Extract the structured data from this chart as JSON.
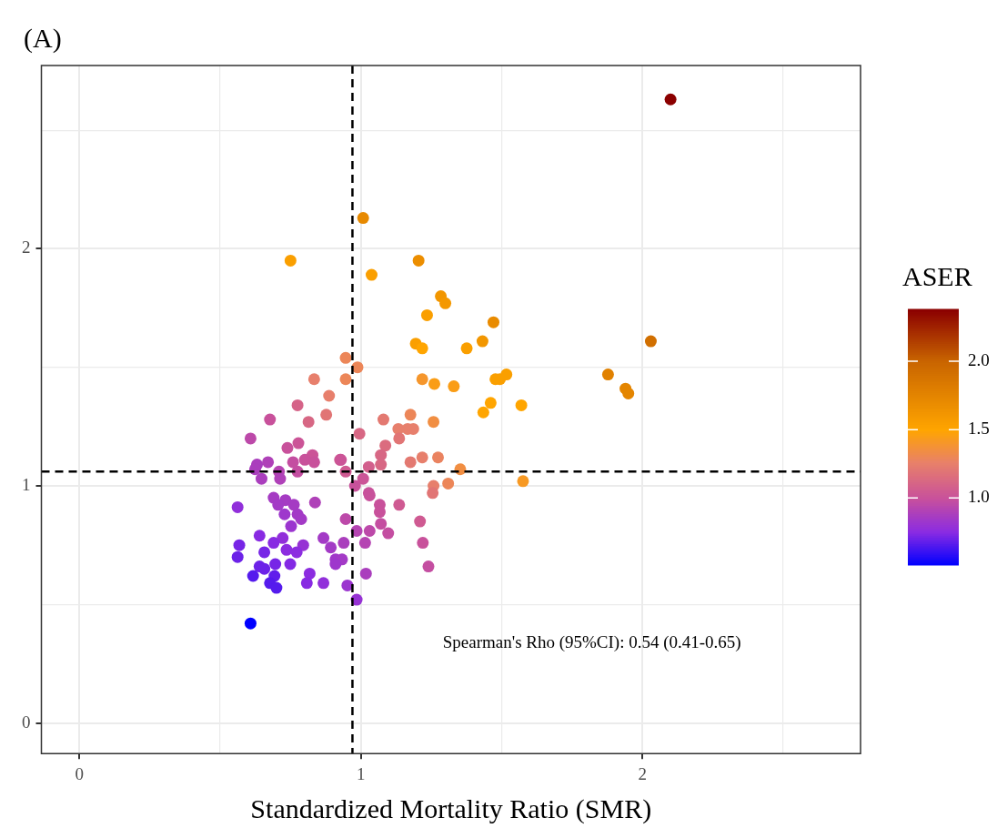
{
  "chart_data": {
    "type": "scatter",
    "title": "(A)",
    "xlabel": "Standardized Mortality Ratio (SMR)",
    "clabel": "ASER",
    "x": [
      2.1,
      1.008,
      0.75,
      1.038,
      1.205,
      1.284,
      1.3,
      1.235,
      1.471,
      1.195,
      1.218,
      1.376,
      1.432,
      0.946,
      0.988,
      0.946,
      0.887,
      0.877,
      1.218,
      1.261,
      1.33,
      1.478,
      1.494,
      1.517,
      1.461,
      1.435,
      1.57,
      1.176,
      1.08,
      1.133,
      1.166,
      1.186,
      1.258,
      1.136,
      0.995,
      1.087,
      1.071,
      1.071,
      1.176,
      1.218,
      1.274,
      1.353,
      0.926,
      1.028,
      0.946,
      1.008,
      0.979,
      1.028,
      1.258,
      1.31,
      1.576,
      1.255,
      0.834,
      0.775,
      0.814,
      0.677,
      0.608,
      0.739,
      0.778,
      0.828,
      0.801,
      0.834,
      0.759,
      0.775,
      0.67,
      0.631,
      0.624,
      0.709,
      0.647,
      0.713,
      0.929,
      0.69,
      0.732,
      0.706,
      0.762,
      0.837,
      0.562,
      0.729,
      0.775,
      0.788,
      0.752,
      0.946,
      1.031,
      1.067,
      1.067,
      1.071,
      1.136,
      0.985,
      1.031,
      1.015,
      1.097,
      1.21,
      0.64,
      0.722,
      0.69,
      0.568,
      0.795,
      0.657,
      0.736,
      0.772,
      0.867,
      0.893,
      0.939,
      0.562,
      0.64,
      0.657,
      0.696,
      0.749,
      0.91,
      0.933,
      0.91,
      0.617,
      0.693,
      0.677,
      0.7,
      0.818,
      0.808,
      0.867,
      0.952,
      1.018,
      0.985,
      0.608,
      1.22,
      1.24,
      1.878,
      1.94,
      1.95,
      2.03
    ],
    "values": [
      2.63,
      2.13,
      1.95,
      1.89,
      1.95,
      1.8,
      1.77,
      1.72,
      1.69,
      1.6,
      1.58,
      1.58,
      1.61,
      1.54,
      1.5,
      1.45,
      1.38,
      1.3,
      1.45,
      1.43,
      1.42,
      1.45,
      1.45,
      1.47,
      1.35,
      1.31,
      1.34,
      1.3,
      1.28,
      1.24,
      1.24,
      1.24,
      1.27,
      1.2,
      1.22,
      1.17,
      1.13,
      1.09,
      1.1,
      1.12,
      1.12,
      1.07,
      1.11,
      1.08,
      1.06,
      1.03,
      1.0,
      0.97,
      1.0,
      1.01,
      1.02,
      0.97,
      1.45,
      1.34,
      1.27,
      1.28,
      1.2,
      1.16,
      1.18,
      1.13,
      1.11,
      1.1,
      1.1,
      1.06,
      1.1,
      1.09,
      1.07,
      1.06,
      1.03,
      1.03,
      1.11,
      0.95,
      0.94,
      0.92,
      0.92,
      0.93,
      0.91,
      0.88,
      0.88,
      0.86,
      0.83,
      0.86,
      0.96,
      0.92,
      0.89,
      0.84,
      0.92,
      0.81,
      0.81,
      0.76,
      0.8,
      0.85,
      0.79,
      0.78,
      0.76,
      0.75,
      0.75,
      0.72,
      0.73,
      0.72,
      0.78,
      0.74,
      0.76,
      0.7,
      0.66,
      0.65,
      0.67,
      0.67,
      0.69,
      0.69,
      0.67,
      0.62,
      0.62,
      0.59,
      0.57,
      0.63,
      0.59,
      0.59,
      0.58,
      0.63,
      0.52,
      0.42,
      0.76,
      0.66,
      1.47,
      1.41,
      1.39,
      1.61
    ],
    "cvalues": [
      2.38,
      1.72,
      1.55,
      1.55,
      1.68,
      1.62,
      1.6,
      1.55,
      1.7,
      1.55,
      1.5,
      1.55,
      1.62,
      1.3,
      1.3,
      1.3,
      1.25,
      1.2,
      1.4,
      1.45,
      1.45,
      1.55,
      1.55,
      1.55,
      1.5,
      1.5,
      1.5,
      1.3,
      1.22,
      1.25,
      1.25,
      1.25,
      1.35,
      1.2,
      1.12,
      1.15,
      1.12,
      1.12,
      1.22,
      1.25,
      1.28,
      1.35,
      1.05,
      1.08,
      1.05,
      1.02,
      1.0,
      1.0,
      1.25,
      1.3,
      1.42,
      1.2,
      1.25,
      1.1,
      1.12,
      1.0,
      0.95,
      1.0,
      1.02,
      1.02,
      1.0,
      1.0,
      0.98,
      0.98,
      0.9,
      0.88,
      0.88,
      0.92,
      0.88,
      0.9,
      1.02,
      0.86,
      0.86,
      0.85,
      0.86,
      0.9,
      0.78,
      0.83,
      0.85,
      0.85,
      0.82,
      0.95,
      1.0,
      1.0,
      1.0,
      0.98,
      1.05,
      0.92,
      0.95,
      0.92,
      0.98,
      1.05,
      0.75,
      0.78,
      0.75,
      0.72,
      0.8,
      0.72,
      0.76,
      0.76,
      0.85,
      0.85,
      0.88,
      0.7,
      0.7,
      0.7,
      0.72,
      0.74,
      0.84,
      0.85,
      0.83,
      0.66,
      0.68,
      0.66,
      0.66,
      0.76,
      0.75,
      0.78,
      0.82,
      0.88,
      0.8,
      0.51,
      1.0,
      0.98,
      1.78,
      1.75,
      1.75,
      1.92
    ],
    "clim": [
      0.51,
      2.38
    ],
    "cticks": [
      {
        "value": 1,
        "label": "1.0"
      },
      {
        "value": 1.5,
        "label": "1.5"
      },
      {
        "value": 2,
        "label": "2.0"
      }
    ],
    "xlim": [
      -0.135,
      2.775
    ],
    "ylim": [
      -0.129,
      2.773
    ],
    "xticks": [
      0,
      {
        "value": 0.5,
        "label": null
      },
      1,
      {
        "value": 1.5,
        "label": null
      },
      2,
      {
        "value": 2.5,
        "label": null
      }
    ],
    "yticks": [
      0,
      {
        "value": 0.5,
        "label": null
      },
      1,
      {
        "value": 1.5,
        "label": null
      },
      2,
      {
        "value": 2.5,
        "label": null
      }
    ],
    "ref_lines": [
      {
        "axis": "x",
        "value": 0.97,
        "line_style": "dashed",
        "color": "#000000"
      },
      {
        "axis": "y",
        "value": 1.06,
        "line_style": "dashed",
        "color": "#000000"
      }
    ],
    "annotations": [
      "Spearman's Rho (95%CI): 0.54 (0.41-0.65)"
    ],
    "grid": true,
    "legend": false,
    "marker": "circle"
  }
}
